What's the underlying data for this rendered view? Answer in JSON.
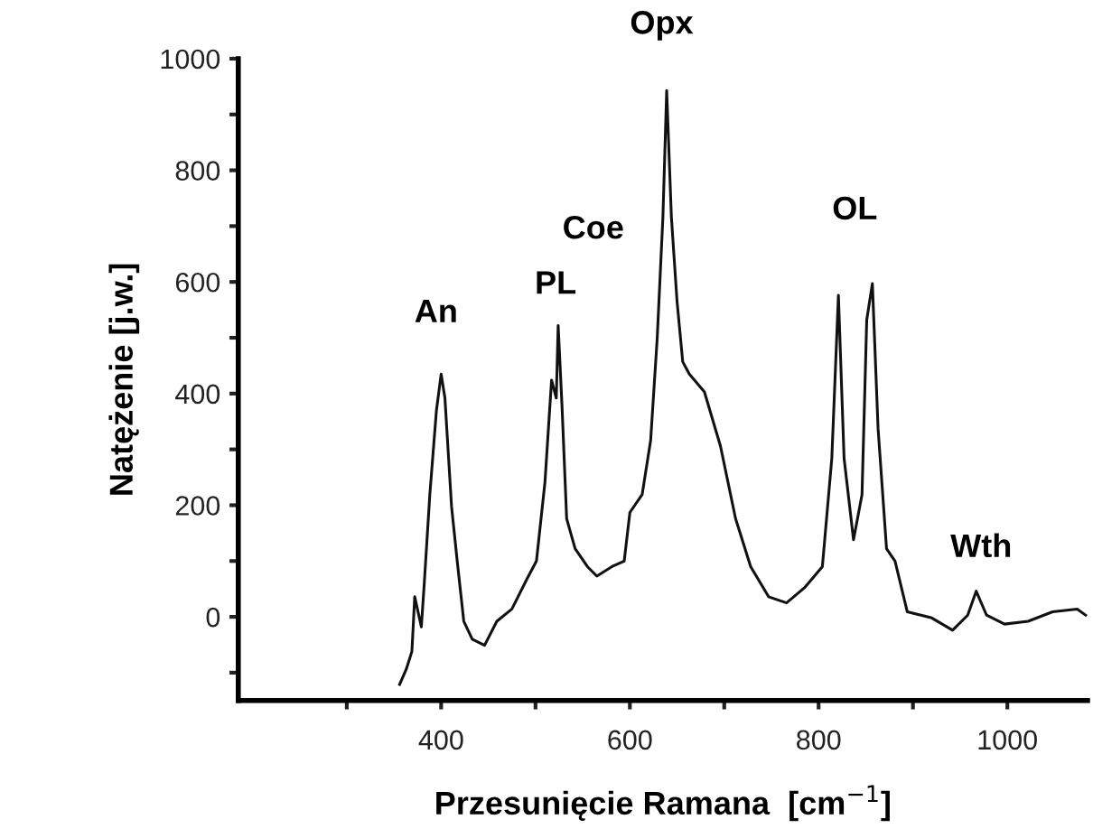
{
  "chart_data": {
    "type": "line",
    "xlabel": "Przesunięcie Ramana  [cm$^{−1}$]",
    "ylabel": "Natężenie [j.w.]",
    "xlim": [
      185,
      1085
    ],
    "ylim": [
      -150,
      1000
    ],
    "xticks": [
      {
        "value": 300,
        "label": null
      },
      400,
      {
        "value": 500,
        "label": null
      },
      600,
      {
        "value": 700,
        "label": null
      },
      800,
      {
        "value": 900,
        "label": null
      },
      1000
    ],
    "yticks": [
      {
        "value": -100,
        "label": null
      },
      0,
      {
        "value": 100,
        "label": null
      },
      200,
      {
        "value": 300,
        "label": null
      },
      400,
      {
        "value": 500,
        "label": null
      },
      600,
      {
        "value": 700,
        "label": null
      },
      800,
      {
        "value": 900,
        "label": null
      },
      1000
    ],
    "grid": false,
    "legend": false,
    "series": [
      {
        "color": "#111111",
        "x": [
          356,
          363,
          369,
          372,
          379,
          382,
          388,
          395,
          400,
          404,
          411,
          417,
          424,
          433,
          446,
          459,
          475,
          491,
          501,
          510,
          517,
          522,
          524,
          528,
          533,
          542,
          555,
          565,
          581,
          594,
          600,
          613,
          622,
          629,
          635,
          639,
          644,
          650,
          656,
          663,
          679,
          696,
          712,
          728,
          747,
          766,
          785,
          804,
          814,
          821,
          827,
          837,
          846,
          851,
          857,
          863,
          872,
          881,
          894,
          920,
          942,
          958,
          967,
          978,
          997,
          1022,
          1048,
          1074,
          1083
        ],
        "values": [
          -121,
          -94,
          -62,
          36,
          -18,
          57,
          219,
          370,
          435,
          392,
          198,
          100,
          -8,
          -40,
          -51,
          -8,
          14,
          68,
          100,
          241,
          424,
          392,
          522,
          381,
          176,
          122,
          90,
          73,
          90,
          100,
          187,
          219,
          316,
          500,
          716,
          943,
          716,
          565,
          457,
          435,
          403,
          306,
          176,
          90,
          36,
          25,
          52,
          90,
          284,
          576,
          284,
          138,
          219,
          532,
          597,
          338,
          122,
          100,
          9,
          -2,
          -24,
          3,
          46,
          3,
          -13,
          -8,
          9,
          14,
          3
        ]
      }
    ],
    "annotations": [
      {
        "text": "An",
        "x": 400,
        "y": 435
      },
      {
        "text": "PL",
        "x": 524,
        "y": 522
      },
      {
        "text": "Coe",
        "x": 524,
        "y": 522
      },
      {
        "text": "Opx",
        "x": 639,
        "y": 943
      },
      {
        "text": "OL",
        "x": 857,
        "y": 597
      },
      {
        "text": "Wth",
        "x": 967,
        "y": 46
      }
    ]
  }
}
